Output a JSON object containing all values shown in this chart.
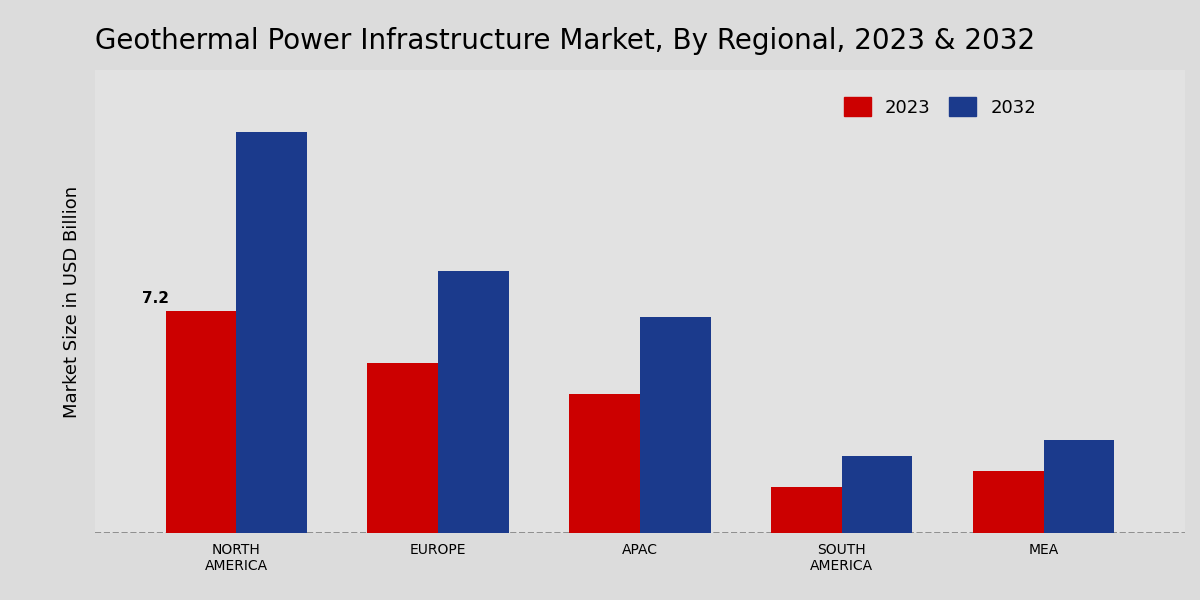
{
  "title": "Geothermal Power Infrastructure Market, By Regional, 2023 & 2032",
  "ylabel": "Market Size in USD Billion",
  "categories": [
    "NORTH\nAMERICA",
    "EUROPE",
    "APAC",
    "SOUTH\nAMERICA",
    "MEA"
  ],
  "values_2023": [
    7.2,
    5.5,
    4.5,
    1.5,
    2.0
  ],
  "values_2032": [
    13.0,
    8.5,
    7.0,
    2.5,
    3.0
  ],
  "color_2023": "#CC0000",
  "color_2032": "#1B3A8C",
  "annotation_value": "7.2",
  "annotation_bar_index": 0,
  "bar_width": 0.35,
  "ylim": [
    0,
    15
  ],
  "legend_labels": [
    "2023",
    "2032"
  ],
  "title_fontsize": 20,
  "axis_label_fontsize": 13,
  "tick_fontsize": 10,
  "annotation_fontsize": 11,
  "legend_fontsize": 13
}
